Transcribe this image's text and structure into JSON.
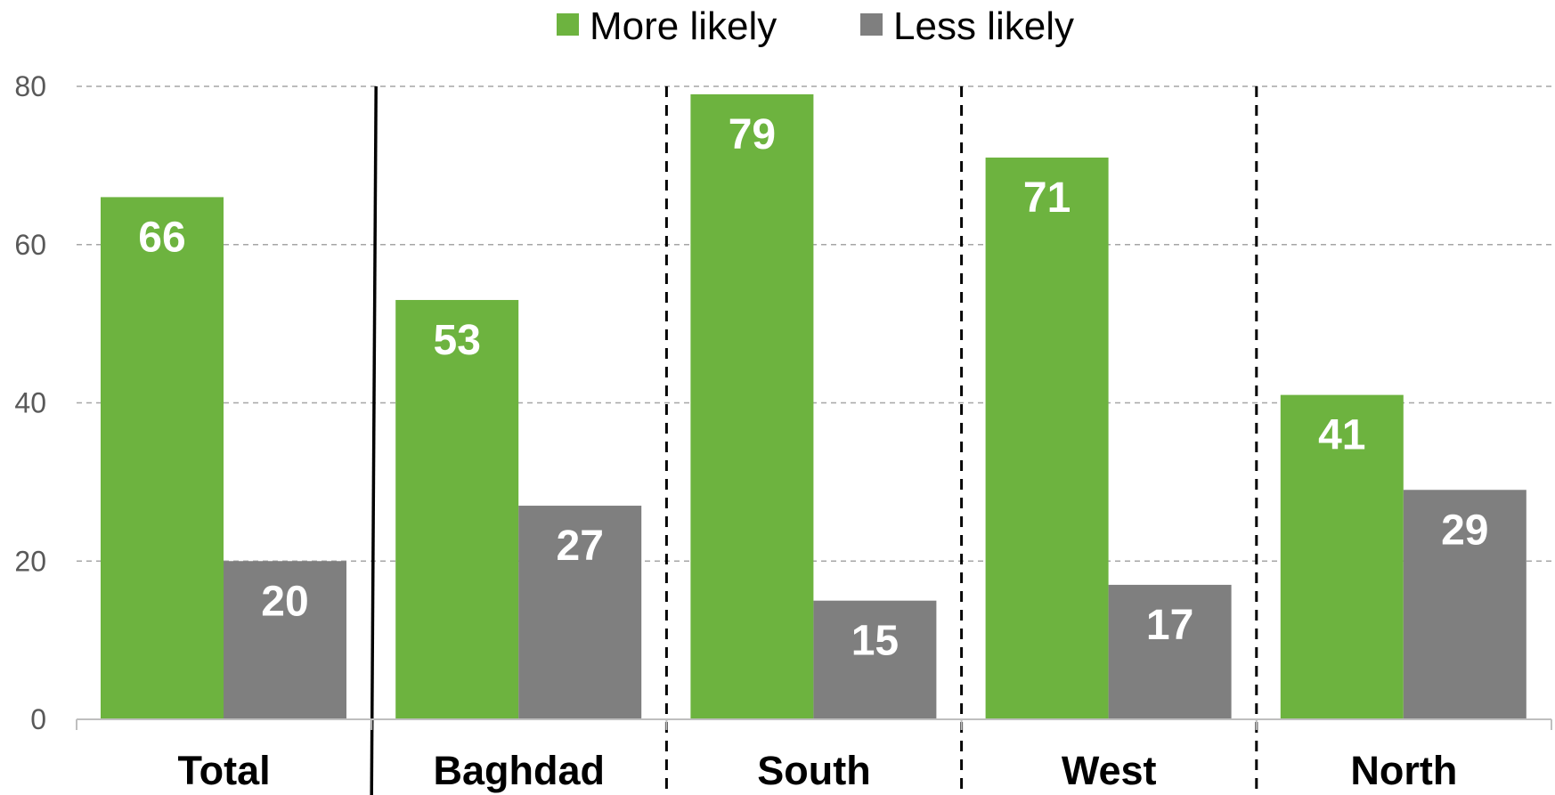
{
  "colors": {
    "more_likely": "#6db33f",
    "less_likely": "#7f7f7f",
    "grid": "#a6a6a6",
    "axis": "#bfbfbf",
    "divider": "#000000"
  },
  "legend": {
    "items": [
      {
        "label": "More likely",
        "color": "#6db33f"
      },
      {
        "label": "Less likely",
        "color": "#7f7f7f"
      }
    ]
  },
  "chart_data": {
    "type": "bar",
    "categories": [
      "Total",
      "Baghdad",
      "South",
      "West",
      "North"
    ],
    "series": [
      {
        "name": "More likely",
        "values": [
          66,
          53,
          79,
          71,
          41
        ]
      },
      {
        "name": "Less likely",
        "values": [
          20,
          27,
          15,
          17,
          29
        ]
      }
    ],
    "ylim": [
      0,
      80
    ],
    "yticks": [
      0,
      20,
      40,
      60,
      80
    ],
    "title": "",
    "xlabel": "",
    "ylabel": "",
    "grid": true,
    "legend_position": "top-center",
    "data_labels": true
  }
}
